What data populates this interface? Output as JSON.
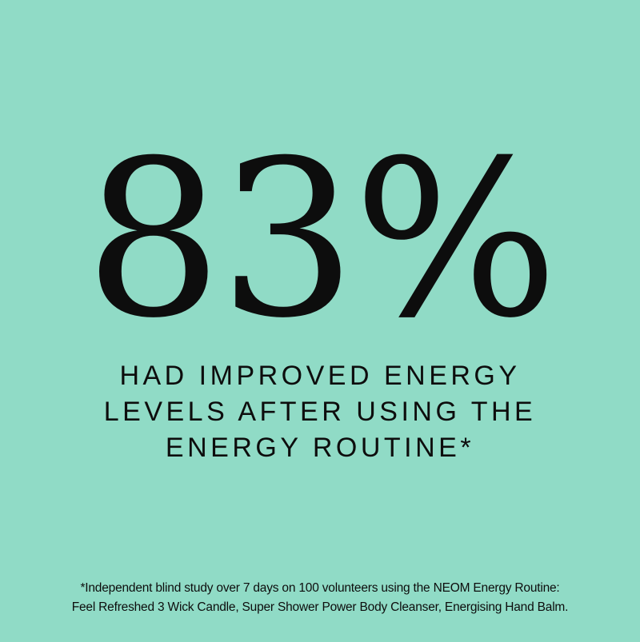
{
  "colors": {
    "background": "#90dbc6",
    "text": "#0d0d0d"
  },
  "stat": "83%",
  "headline": [
    "HAD IMPROVED ENERGY",
    "LEVELS AFTER USING THE",
    "ENERGY ROUTINE*"
  ],
  "footnote": [
    "*Independent blind study over 7 days on 100 volunteers using the NEOM Energy Routine:",
    "Feel Refreshed 3 Wick Candle, Super Shower Power Body Cleanser, Energising Hand Balm."
  ]
}
